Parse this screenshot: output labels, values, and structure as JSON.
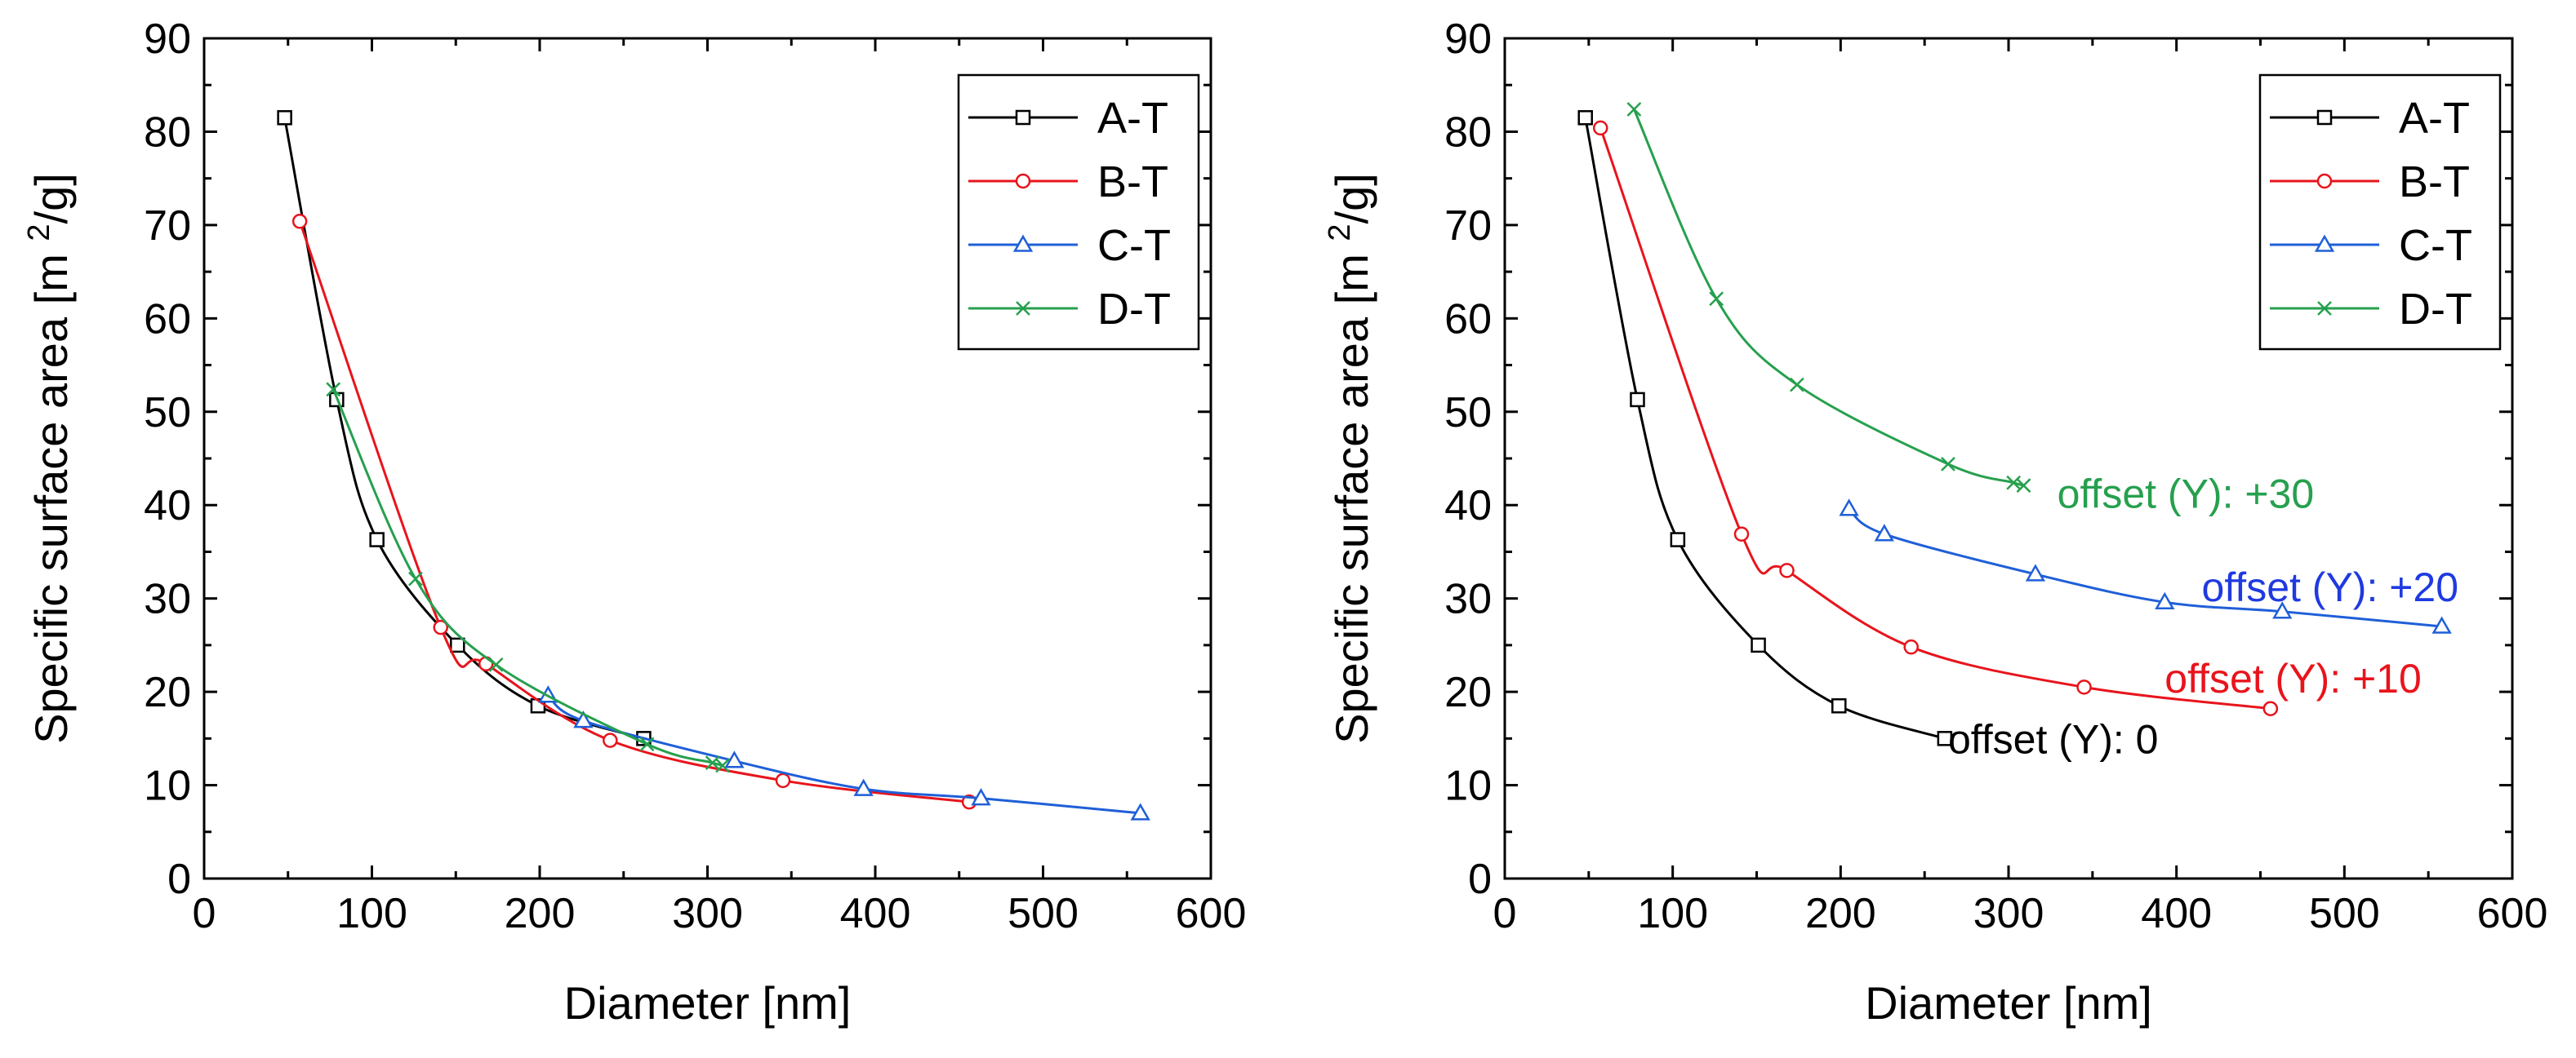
{
  "chart_data": [
    {
      "type": "line",
      "xlabel": "Diameter [nm]",
      "ylabel_main": "Specific surface area [m",
      "ylabel_sup": "2",
      "ylabel_end": "/g]",
      "xlim": [
        0,
        600
      ],
      "ylim": [
        0,
        90
      ],
      "xticks": [
        0,
        100,
        200,
        300,
        400,
        500,
        600
      ],
      "yticks": [
        0,
        10,
        20,
        30,
        40,
        50,
        60,
        70,
        80,
        90
      ],
      "xtick_labels": [
        "0",
        "100",
        "200",
        "300",
        "400",
        "500",
        "600"
      ],
      "ytick_labels": [
        "0",
        "10",
        "20",
        "30",
        "40",
        "50",
        "60",
        "70",
        "80",
        "90"
      ],
      "grid": false,
      "legend_position": "top-right",
      "annotations": [],
      "series": [
        {
          "name": "A-T",
          "color": "#000000",
          "marker": "square",
          "x": [
            48,
            79,
            103,
            151,
            199,
            262
          ],
          "y": [
            81.5,
            51.3,
            36.3,
            25.0,
            18.5,
            15.0
          ]
        },
        {
          "name": "B-T",
          "color": "#e8141c",
          "marker": "circle",
          "x": [
            57,
            141,
            168,
            242,
            345,
            456
          ],
          "y": [
            70.4,
            26.9,
            23.0,
            14.8,
            10.5,
            8.2
          ]
        },
        {
          "name": "C-T",
          "color": "#1f5fd8",
          "marker": "triangle",
          "x": [
            205,
            226,
            316,
            393,
            463,
            558
          ],
          "y": [
            19.6,
            16.9,
            12.6,
            9.6,
            8.6,
            7.0
          ]
        },
        {
          "name": "D-T",
          "color": "#26a04e",
          "marker": "cross",
          "x": [
            77,
            126,
            174,
            264,
            303,
            309
          ],
          "y": [
            52.4,
            32.1,
            22.9,
            14.4,
            12.4,
            12.1
          ]
        }
      ]
    },
    {
      "type": "line",
      "xlabel": "Diameter [nm]",
      "ylabel_main": "Specific surface area [m",
      "ylabel_sup": "2",
      "ylabel_end": "/g]",
      "xlim": [
        0,
        600
      ],
      "ylim": [
        0,
        90
      ],
      "xticks": [
        0,
        100,
        200,
        300,
        400,
        500,
        600
      ],
      "yticks": [
        0,
        10,
        20,
        30,
        40,
        50,
        60,
        70,
        80,
        90
      ],
      "xtick_labels": [
        "0",
        "100",
        "200",
        "300",
        "400",
        "500",
        "600"
      ],
      "ytick_labels": [
        "0",
        "10",
        "20",
        "30",
        "40",
        "50",
        "60",
        "70",
        "80",
        "90"
      ],
      "grid": false,
      "legend_position": "top-right",
      "annotations": [
        {
          "text": "offset (Y): 0",
          "color": "#000000",
          "x": 264,
          "y": 15.0
        },
        {
          "text": "offset (Y): +10",
          "color": "#e8141c",
          "x": 393,
          "y": 21.5
        },
        {
          "text": "offset (Y): +20",
          "color": "#1f3ae0",
          "x": 415,
          "y": 31.3
        },
        {
          "text": "offset (Y): +30",
          "color": "#26a04e",
          "x": 329,
          "y": 41.3
        }
      ],
      "series": [
        {
          "name": "A-T",
          "color": "#000000",
          "marker": "square",
          "x": [
            48,
            79,
            103,
            151,
            199,
            262
          ],
          "y": [
            81.5,
            51.3,
            36.3,
            25.0,
            18.5,
            15.0
          ]
        },
        {
          "name": "B-T",
          "color": "#e8141c",
          "marker": "circle",
          "x": [
            57,
            141,
            168,
            242,
            345,
            456
          ],
          "y": [
            80.4,
            36.9,
            33.0,
            24.8,
            20.5,
            18.2
          ]
        },
        {
          "name": "C-T",
          "color": "#1f5fd8",
          "marker": "triangle",
          "x": [
            205,
            226,
            316,
            393,
            463,
            558
          ],
          "y": [
            39.6,
            36.9,
            32.6,
            29.6,
            28.6,
            27.0
          ]
        },
        {
          "name": "D-T",
          "color": "#26a04e",
          "marker": "cross",
          "x": [
            77,
            126,
            174,
            264,
            303,
            309
          ],
          "y": [
            82.4,
            62.1,
            52.9,
            44.4,
            42.4,
            42.1
          ]
        }
      ]
    }
  ]
}
